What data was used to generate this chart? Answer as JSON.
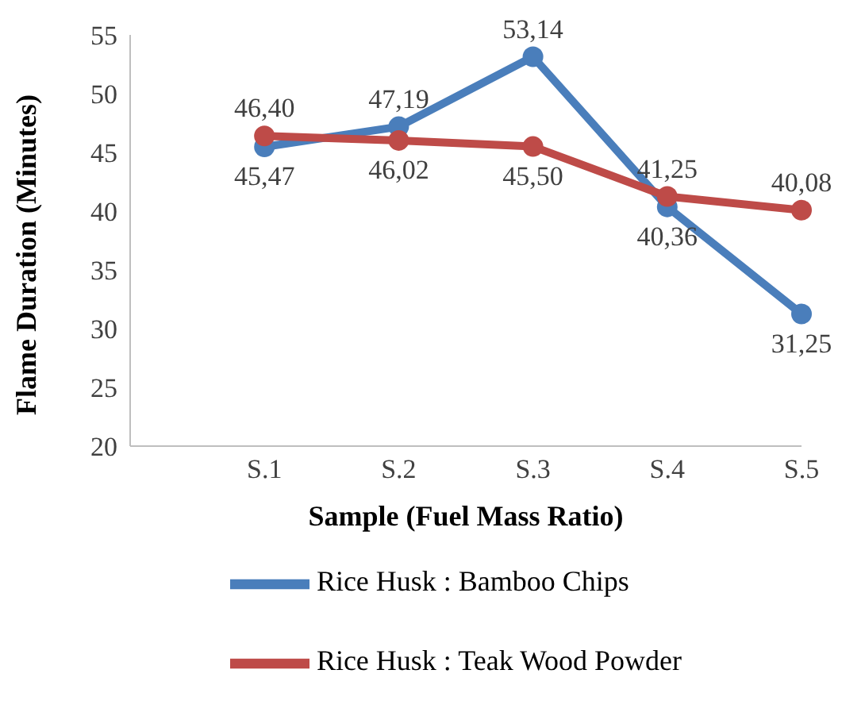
{
  "chart_data": {
    "type": "line",
    "xlabel": "Sample (Fuel Mass Ratio)",
    "ylabel": "Flame Duration (Minutes)",
    "categories": [
      null,
      "S.1",
      "S.2",
      "S.3",
      "S.4",
      "S.5"
    ],
    "series": [
      {
        "name": "Rice Husk : Bamboo Chips",
        "color": "#4a7ebb",
        "values": [
          null,
          45.47,
          47.19,
          53.14,
          40.36,
          31.25
        ],
        "value_labels": [
          null,
          "45,47",
          "47,19",
          "53,14",
          "40,36",
          "31,25"
        ]
      },
      {
        "name": "Rice Husk : Teak Wood Powder",
        "color": "#be4b48",
        "values": [
          null,
          46.4,
          46.02,
          45.5,
          41.25,
          40.08
        ],
        "value_labels": [
          null,
          "46,40",
          "46,02",
          "45,50",
          "41,25",
          "40,08"
        ]
      }
    ],
    "ylim": [
      20,
      55
    ],
    "yticks": [
      20,
      25,
      30,
      35,
      40,
      45,
      50,
      55
    ],
    "grid": false,
    "legend": "bottom",
    "marker": "circle",
    "line_style": "solid"
  }
}
